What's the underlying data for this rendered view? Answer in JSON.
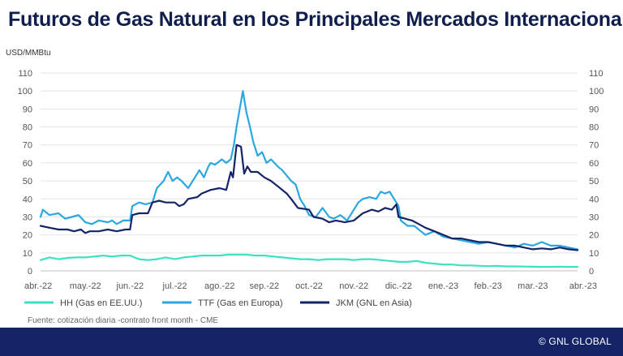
{
  "title": "Futuros de Gas Natural en los Principales Mercados Internacionales",
  "unit_label": "USD/MMBtu",
  "source": "Fuente: cotización diaria -contrato front month - CME",
  "footer": "© GNL GLOBAL",
  "chart_data": {
    "type": "line",
    "ylim": [
      0,
      110
    ],
    "yticks": [
      0,
      10,
      20,
      30,
      40,
      50,
      60,
      70,
      80,
      90,
      100,
      110
    ],
    "ytick_labels": [
      "0",
      "10",
      "20",
      "30",
      "40",
      "50",
      "60",
      "70",
      "80",
      "90",
      "100",
      "110"
    ],
    "xlim": [
      0,
      12
    ],
    "xticks": [
      0,
      1,
      2,
      3,
      4,
      5,
      6,
      7,
      8,
      9,
      10,
      11,
      12
    ],
    "xtick_labels": [
      "abr.-22",
      "may.-22",
      "jun.-22",
      "jul.-22",
      "ago.-22",
      "sep.-22",
      "oct.-22",
      "nov.-22",
      "dic.-22",
      "ene.-23",
      "feb.-23",
      "mar.-23",
      "abr.-23"
    ],
    "grid": true,
    "legend_position": "bottom",
    "series": [
      {
        "name": "HH (Gas en EE.UU.)",
        "color": "#3de0c0",
        "points": [
          [
            0,
            6
          ],
          [
            0.2,
            7.5
          ],
          [
            0.4,
            6.5
          ],
          [
            0.6,
            7.2
          ],
          [
            0.8,
            7.5
          ],
          [
            1.0,
            7.5
          ],
          [
            1.2,
            8
          ],
          [
            1.4,
            8.5
          ],
          [
            1.6,
            8
          ],
          [
            1.8,
            8.5
          ],
          [
            2.0,
            8.5
          ],
          [
            2.2,
            6.5
          ],
          [
            2.4,
            6
          ],
          [
            2.6,
            6.5
          ],
          [
            2.8,
            7.5
          ],
          [
            3.0,
            6.5
          ],
          [
            3.2,
            7.5
          ],
          [
            3.4,
            8
          ],
          [
            3.6,
            8.5
          ],
          [
            3.8,
            8.5
          ],
          [
            4.0,
            8.5
          ],
          [
            4.2,
            9
          ],
          [
            4.4,
            9
          ],
          [
            4.6,
            9
          ],
          [
            4.8,
            8.5
          ],
          [
            5.0,
            8.5
          ],
          [
            5.2,
            8
          ],
          [
            5.4,
            7.5
          ],
          [
            5.6,
            7
          ],
          [
            5.8,
            6.5
          ],
          [
            6.0,
            6.5
          ],
          [
            6.2,
            6
          ],
          [
            6.4,
            6.5
          ],
          [
            6.6,
            6.5
          ],
          [
            6.8,
            6.5
          ],
          [
            7.0,
            6
          ],
          [
            7.2,
            6.5
          ],
          [
            7.4,
            6.5
          ],
          [
            7.6,
            6
          ],
          [
            7.8,
            5.5
          ],
          [
            8.0,
            5
          ],
          [
            8.2,
            5
          ],
          [
            8.4,
            5.5
          ],
          [
            8.6,
            4.5
          ],
          [
            8.8,
            4
          ],
          [
            9.0,
            3.5
          ],
          [
            9.2,
            3.5
          ],
          [
            9.4,
            3
          ],
          [
            9.6,
            3
          ],
          [
            9.8,
            2.8
          ],
          [
            10.0,
            2.6
          ],
          [
            10.2,
            2.8
          ],
          [
            10.4,
            2.5
          ],
          [
            10.6,
            2.5
          ],
          [
            10.8,
            2.4
          ],
          [
            11.0,
            2.3
          ],
          [
            11.2,
            2.2
          ],
          [
            11.4,
            2.2
          ],
          [
            11.6,
            2.3
          ],
          [
            11.8,
            2.2
          ],
          [
            12.0,
            2.2
          ]
        ]
      },
      {
        "name": "TTF (Gas en Europa)",
        "color": "#2aa7e0",
        "points": [
          [
            0,
            30
          ],
          [
            0.05,
            34
          ],
          [
            0.2,
            31
          ],
          [
            0.4,
            32
          ],
          [
            0.55,
            29
          ],
          [
            0.7,
            30
          ],
          [
            0.85,
            31
          ],
          [
            1.0,
            27
          ],
          [
            1.15,
            26
          ],
          [
            1.3,
            28
          ],
          [
            1.5,
            27
          ],
          [
            1.6,
            28
          ],
          [
            1.7,
            26
          ],
          [
            1.85,
            28
          ],
          [
            2.0,
            28
          ],
          [
            2.05,
            36
          ],
          [
            2.2,
            38
          ],
          [
            2.35,
            37
          ],
          [
            2.5,
            38
          ],
          [
            2.6,
            46
          ],
          [
            2.75,
            50
          ],
          [
            2.85,
            55
          ],
          [
            2.95,
            50
          ],
          [
            3.05,
            52
          ],
          [
            3.15,
            50
          ],
          [
            3.3,
            46
          ],
          [
            3.45,
            52
          ],
          [
            3.55,
            56
          ],
          [
            3.65,
            52
          ],
          [
            3.75,
            58
          ],
          [
            3.8,
            60
          ],
          [
            3.9,
            59
          ],
          [
            4.05,
            62
          ],
          [
            4.15,
            60
          ],
          [
            4.25,
            62
          ],
          [
            4.32,
            70
          ],
          [
            4.38,
            80
          ],
          [
            4.45,
            90
          ],
          [
            4.52,
            100
          ],
          [
            4.6,
            88
          ],
          [
            4.68,
            80
          ],
          [
            4.75,
            72
          ],
          [
            4.85,
            64
          ],
          [
            4.95,
            66
          ],
          [
            5.05,
            60
          ],
          [
            5.15,
            62
          ],
          [
            5.3,
            58
          ],
          [
            5.4,
            56
          ],
          [
            5.5,
            53
          ],
          [
            5.6,
            50
          ],
          [
            5.7,
            48
          ],
          [
            5.8,
            40
          ],
          [
            5.9,
            36
          ],
          [
            6.0,
            31
          ],
          [
            6.15,
            30
          ],
          [
            6.3,
            35
          ],
          [
            6.45,
            30
          ],
          [
            6.55,
            29
          ],
          [
            6.7,
            31
          ],
          [
            6.85,
            28
          ],
          [
            7.0,
            34
          ],
          [
            7.1,
            38
          ],
          [
            7.2,
            40
          ],
          [
            7.35,
            41
          ],
          [
            7.5,
            40
          ],
          [
            7.6,
            44
          ],
          [
            7.7,
            43
          ],
          [
            7.8,
            44
          ],
          [
            7.85,
            42
          ],
          [
            7.9,
            40
          ],
          [
            8.0,
            36
          ],
          [
            8.05,
            28
          ],
          [
            8.2,
            25
          ],
          [
            8.35,
            25
          ],
          [
            8.5,
            22
          ],
          [
            8.6,
            20
          ],
          [
            8.8,
            22
          ],
          [
            9.0,
            19
          ],
          [
            9.2,
            18
          ],
          [
            9.4,
            17
          ],
          [
            9.6,
            16
          ],
          [
            9.8,
            15
          ],
          [
            10.0,
            16
          ],
          [
            10.2,
            15
          ],
          [
            10.4,
            14
          ],
          [
            10.6,
            13
          ],
          [
            10.8,
            15
          ],
          [
            11.0,
            14
          ],
          [
            11.2,
            16
          ],
          [
            11.4,
            14
          ],
          [
            11.6,
            14
          ],
          [
            11.8,
            13
          ],
          [
            12.0,
            12
          ]
        ]
      },
      {
        "name": "JKM (GNL en Asia)",
        "color": "#142466",
        "points": [
          [
            0,
            25
          ],
          [
            0.2,
            24
          ],
          [
            0.4,
            23
          ],
          [
            0.6,
            23
          ],
          [
            0.75,
            22
          ],
          [
            0.9,
            23
          ],
          [
            1.0,
            21
          ],
          [
            1.1,
            22
          ],
          [
            1.3,
            22
          ],
          [
            1.5,
            23
          ],
          [
            1.7,
            22
          ],
          [
            1.9,
            23
          ],
          [
            2.0,
            23
          ],
          [
            2.05,
            31
          ],
          [
            2.2,
            32
          ],
          [
            2.4,
            32
          ],
          [
            2.5,
            38
          ],
          [
            2.65,
            39
          ],
          [
            2.8,
            38
          ],
          [
            3.0,
            38
          ],
          [
            3.1,
            36
          ],
          [
            3.2,
            37
          ],
          [
            3.3,
            40
          ],
          [
            3.5,
            41
          ],
          [
            3.6,
            43
          ],
          [
            3.8,
            45
          ],
          [
            4.0,
            46
          ],
          [
            4.15,
            45
          ],
          [
            4.25,
            55
          ],
          [
            4.3,
            52
          ],
          [
            4.38,
            70
          ],
          [
            4.48,
            69
          ],
          [
            4.55,
            54
          ],
          [
            4.62,
            58
          ],
          [
            4.7,
            55
          ],
          [
            4.85,
            55
          ],
          [
            5.0,
            52
          ],
          [
            5.15,
            50
          ],
          [
            5.3,
            47
          ],
          [
            5.5,
            43
          ],
          [
            5.6,
            40
          ],
          [
            5.75,
            35
          ],
          [
            6.0,
            34
          ],
          [
            6.1,
            30
          ],
          [
            6.3,
            29
          ],
          [
            6.45,
            27
          ],
          [
            6.6,
            28
          ],
          [
            6.8,
            27
          ],
          [
            7.0,
            28
          ],
          [
            7.2,
            32
          ],
          [
            7.4,
            34
          ],
          [
            7.55,
            33
          ],
          [
            7.7,
            35
          ],
          [
            7.85,
            34
          ],
          [
            7.95,
            37
          ],
          [
            8.0,
            30
          ],
          [
            8.15,
            29
          ],
          [
            8.3,
            28
          ],
          [
            8.45,
            26
          ],
          [
            8.6,
            24
          ],
          [
            8.8,
            22
          ],
          [
            9.0,
            20
          ],
          [
            9.2,
            18
          ],
          [
            9.4,
            18
          ],
          [
            9.6,
            17
          ],
          [
            9.8,
            16
          ],
          [
            10.0,
            16
          ],
          [
            10.2,
            15
          ],
          [
            10.4,
            14
          ],
          [
            10.6,
            14
          ],
          [
            10.8,
            13
          ],
          [
            11.0,
            12
          ],
          [
            11.2,
            12.5
          ],
          [
            11.4,
            12
          ],
          [
            11.6,
            13
          ],
          [
            11.8,
            12
          ],
          [
            12.0,
            11.5
          ]
        ]
      }
    ]
  }
}
